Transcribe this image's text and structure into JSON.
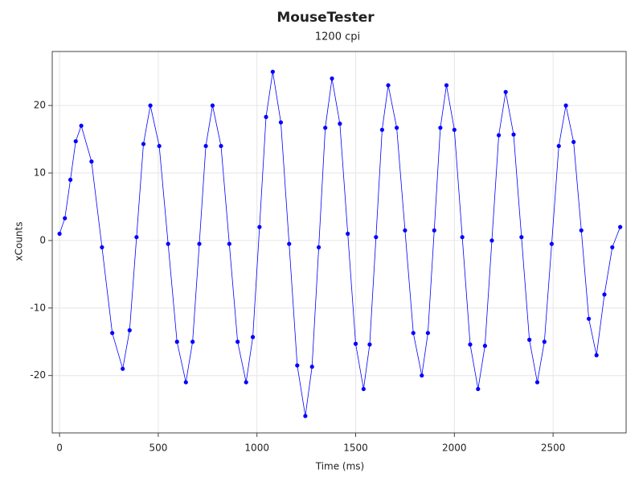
{
  "chart_data": {
    "type": "line",
    "title": "MouseTester",
    "subtitle": "1200 cpi",
    "xlabel": "Time (ms)",
    "ylabel": "xCounts",
    "x": [
      0,
      27,
      55,
      82,
      110,
      162,
      215,
      267,
      320,
      355,
      390,
      425,
      460,
      505,
      550,
      595,
      640,
      674,
      708,
      741,
      775,
      818,
      860,
      902,
      945,
      979,
      1013,
      1046,
      1080,
      1121,
      1163,
      1204,
      1245,
      1279,
      1313,
      1346,
      1380,
      1420,
      1460,
      1500,
      1540,
      1571,
      1603,
      1634,
      1665,
      1708,
      1750,
      1792,
      1835,
      1866,
      1898,
      1929,
      1960,
      2000,
      2040,
      2080,
      2120,
      2155,
      2190,
      2225,
      2260,
      2300,
      2340,
      2380,
      2420,
      2456,
      2493,
      2529,
      2565,
      2604,
      2643,
      2681,
      2720,
      2760,
      2800,
      2840
    ],
    "series": [
      {
        "name": "xCounts",
        "color": "#0000ff",
        "values": [
          1,
          3.3,
          9,
          14.7,
          17,
          11.7,
          -1,
          -13.7,
          -19,
          -13.3,
          0.5,
          14.3,
          20,
          14,
          -0.5,
          -15,
          -21,
          -15,
          -0.5,
          14,
          20,
          14,
          -0.5,
          -15,
          -21,
          -14.3,
          2,
          18.3,
          25,
          17.5,
          -0.5,
          -18.5,
          -26,
          -18.7,
          -1,
          16.7,
          24,
          17.3,
          1,
          -15.3,
          -22,
          -15.4,
          0.5,
          16.4,
          23,
          16.7,
          1.5,
          -13.7,
          -20,
          -13.7,
          1.5,
          16.7,
          23,
          16.4,
          0.5,
          -15.4,
          -22,
          -15.6,
          0,
          15.6,
          22,
          15.7,
          0.5,
          -14.7,
          -21,
          -15,
          -0.5,
          14,
          20,
          14.6,
          1.5,
          -11.6,
          -17,
          -8,
          -1,
          2
        ]
      }
    ],
    "xlim": [
      -37,
      2870
    ],
    "ylim": [
      -28.5,
      28
    ],
    "xticks": [
      0,
      500,
      1000,
      1500,
      2000,
      2500
    ],
    "yticks": [
      -20,
      -10,
      0,
      10,
      20
    ],
    "grid": true
  }
}
